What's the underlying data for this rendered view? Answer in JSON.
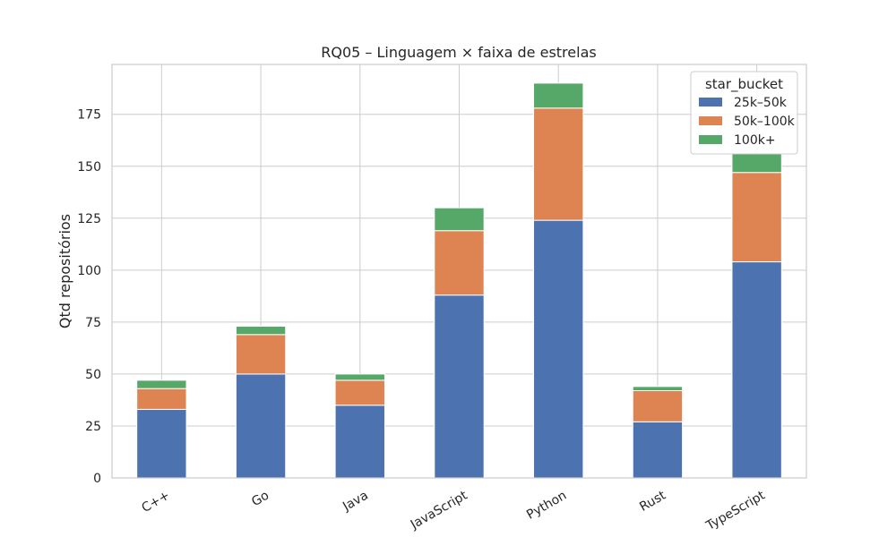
{
  "chart_data": {
    "type": "bar",
    "stacked": true,
    "title": "RQ05 – Linguagem × faixa de estrelas",
    "xlabel": "",
    "ylabel": "Qtd repositórios",
    "categories": [
      "C++",
      "Go",
      "Java",
      "JavaScript",
      "Python",
      "Rust",
      "TypeScript"
    ],
    "series": [
      {
        "name": "25k–50k",
        "color": "#4c72b0",
        "values": [
          33,
          50,
          35,
          88,
          124,
          27,
          104
        ]
      },
      {
        "name": "50k–100k",
        "color": "#dd8452",
        "values": [
          10,
          19,
          12,
          31,
          54,
          15,
          43
        ]
      },
      {
        "name": "100k+",
        "color": "#55a868",
        "values": [
          4,
          4,
          3,
          11,
          12,
          2,
          9
        ]
      }
    ],
    "ylim": [
      0,
      199
    ],
    "yticks": [
      0,
      25,
      50,
      75,
      100,
      125,
      150,
      175
    ],
    "grid": true,
    "legend": {
      "title": "star_bucket",
      "placement": "top-right"
    }
  }
}
